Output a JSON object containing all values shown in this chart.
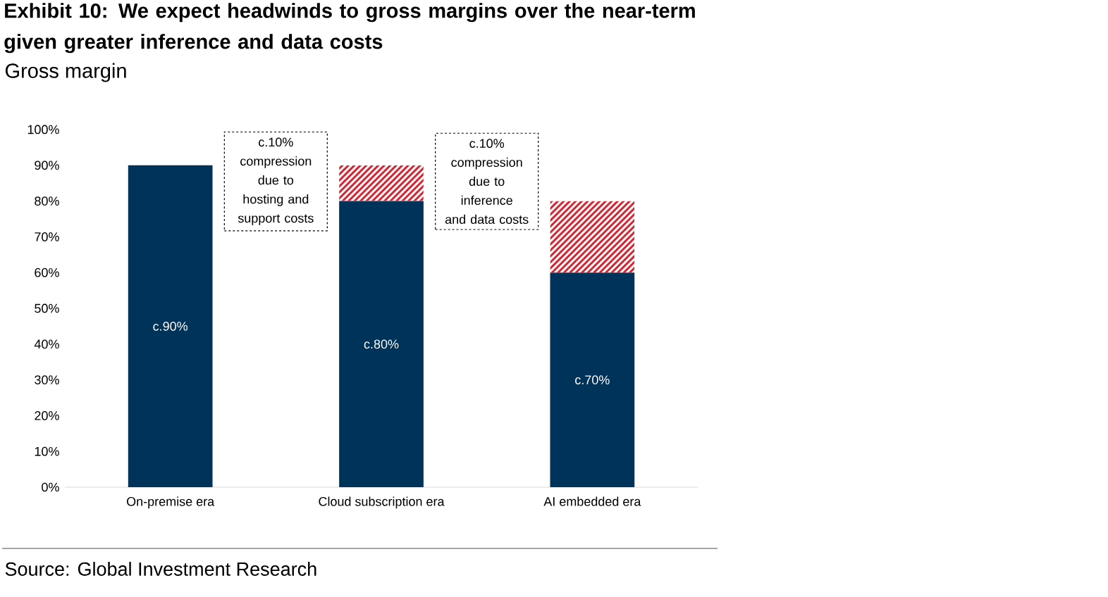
{
  "chart_data": {
    "type": "bar",
    "title": "Exhibit 10: We expect headwinds to gross margins over the near-term given greater inference and data costs",
    "subtitle": "Gross margin",
    "categories": [
      "On-premise era",
      "Cloud subscription era",
      "AI embedded era"
    ],
    "stacked": true,
    "series": [
      {
        "color": "#003359",
        "values": [
          90,
          80,
          60
        ],
        "value_labels": [
          "c.90%",
          "c.80%",
          "c.70%"
        ]
      },
      {
        "color": "#d0202e",
        "values": [
          null,
          10,
          20
        ]
      }
    ],
    "ylim": [
      0,
      100
    ],
    "yticks": [
      {
        "value": 0,
        "label": "0%"
      },
      {
        "value": 10,
        "label": "10%"
      },
      {
        "value": 20,
        "label": "20%"
      },
      {
        "value": 30,
        "label": "30%"
      },
      {
        "value": 40,
        "label": "40%"
      },
      {
        "value": 50,
        "label": "50%"
      },
      {
        "value": 60,
        "label": "60%"
      },
      {
        "value": 70,
        "label": "70%"
      },
      {
        "value": 80,
        "label": "80%"
      },
      {
        "value": 90,
        "label": "90%"
      },
      {
        "value": 100,
        "label": "100%"
      }
    ],
    "annotations": [
      "c.10% compression due to hosting and support costs",
      "c.10% compression due to inference and data costs",
      "Source: Global Investment Research"
    ]
  }
}
